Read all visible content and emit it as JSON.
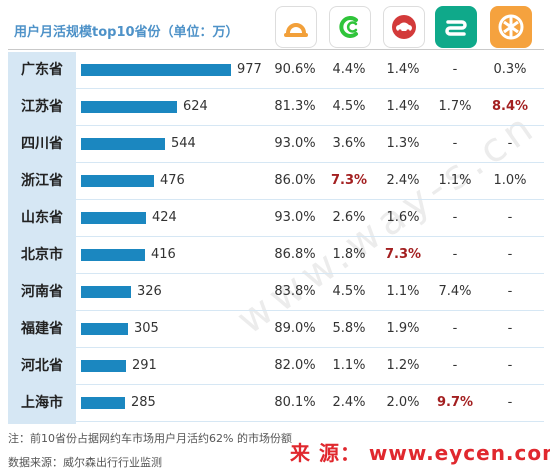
{
  "title": "用户月活规模top10省份（单位：万）",
  "app_icons": [
    {
      "name": "didi-icon",
      "bg": "#ffffff",
      "fg": "#f2a03a",
      "border": "#dddddd"
    },
    {
      "name": "caocao-icon",
      "bg": "#ffffff",
      "fg": "#2fc43a",
      "border": "#dddddd"
    },
    {
      "name": "shouqi-icon",
      "bg": "#ffffff",
      "fg": "#d33a3a",
      "border": "#dddddd"
    },
    {
      "name": "shenzhou-icon",
      "bg": "#0fa98a",
      "fg": "#ffffff",
      "border": "#0fa98a"
    },
    {
      "name": "meituan-icon",
      "bg": "#f5a23e",
      "fg": "#ffffff",
      "border": "#f5a23e"
    }
  ],
  "chart_data": {
    "type": "bar",
    "categories": [
      "广东省",
      "江苏省",
      "四川省",
      "浙江省",
      "山东省",
      "北京市",
      "河南省",
      "福建省",
      "河北省",
      "上海市"
    ],
    "values": [
      977,
      624,
      544,
      476,
      424,
      416,
      326,
      305,
      291,
      285
    ],
    "xlim": [
      0,
      977
    ],
    "table_columns": [
      [
        "90.6%",
        "81.3%",
        "93.0%",
        "86.0%",
        "93.0%",
        "86.8%",
        "83.8%",
        "89.0%",
        "82.0%",
        "80.1%"
      ],
      [
        "4.4%",
        "4.5%",
        "3.6%",
        "7.3%",
        "2.6%",
        "1.8%",
        "4.5%",
        "5.8%",
        "1.1%",
        "2.4%"
      ],
      [
        "1.4%",
        "1.4%",
        "1.3%",
        "2.4%",
        "1.6%",
        "7.3%",
        "1.1%",
        "1.9%",
        "1.2%",
        "2.0%"
      ],
      [
        "-",
        "1.7%",
        "-",
        "1.1%",
        "-",
        "-",
        "7.4%",
        "-",
        "-",
        "9.7%"
      ],
      [
        "0.3%",
        "8.4%",
        "-",
        "1.0%",
        "-",
        "-",
        "-",
        "-",
        "-",
        "-"
      ]
    ],
    "highlighted_cells": [
      [
        1,
        3
      ],
      [
        2,
        5
      ],
      [
        3,
        9
      ],
      [
        4,
        1
      ]
    ],
    "highlight_color": "#a31f20",
    "bar_color": "#1b87c0",
    "title_color": "#4e92c8"
  },
  "footnote": "注：前10省份占据网约车市场用户月活约62% 的市场份额",
  "source_label": "数据来源：威尔森出行行业监测",
  "watermark_text": "来 源： www.eycen.com",
  "diagonal_watermark": "www.way-s.cn"
}
